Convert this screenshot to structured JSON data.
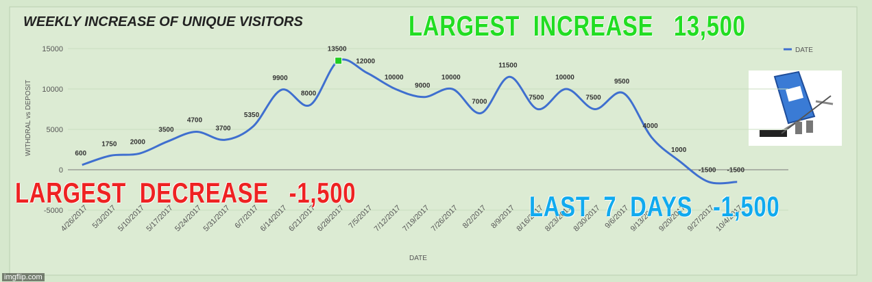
{
  "chart_data": {
    "type": "line",
    "title": "WEEKLY INCREASE OF UNIQUE  VISITORS",
    "x_label": "DATE",
    "y_label": "WITHDRAL vs DEPOSIT",
    "categories": [
      "4/26/2017",
      "5/3/2017",
      "5/10/2017",
      "5/17/2017",
      "5/24/2017",
      "5/31/2017",
      "6/7/2017",
      "6/14/2017",
      "6/21/2017",
      "6/28/2017",
      "7/5/2017",
      "7/12/2017",
      "7/19/2017",
      "7/26/2017",
      "8/2/2017",
      "8/9/2017",
      "8/16/2017",
      "8/23/2017",
      "8/30/2017",
      "9/6/2017",
      "9/13/2017",
      "9/20/2017",
      "9/27/2017",
      "10/4/2017"
    ],
    "series": [
      {
        "name": "DATE",
        "color": "#3f6fcf",
        "values": [
          600,
          1750,
          2000,
          3500,
          4700,
          3700,
          5350,
          9900,
          8000,
          13500,
          12000,
          10000,
          9000,
          10000,
          7000,
          11500,
          7500,
          10000,
          7500,
          9500,
          4000,
          1000,
          -1500,
          -1500
        ]
      }
    ],
    "ylim": [
      -5000,
      15000
    ],
    "yticks": [
      -5000,
      0,
      5000,
      10000,
      15000
    ],
    "grid": true,
    "legend": "top-right",
    "annotations": [
      {
        "text": "LARGEST  INCREASE   13,500",
        "color": "#22dd22"
      },
      {
        "text": "LARGEST  DECREASE   -1,500",
        "color": "#ee2222"
      },
      {
        "text": "LAST  7  DAYS   -1,500",
        "color": "#11aaee"
      }
    ],
    "watermark": "imgflip.com"
  }
}
